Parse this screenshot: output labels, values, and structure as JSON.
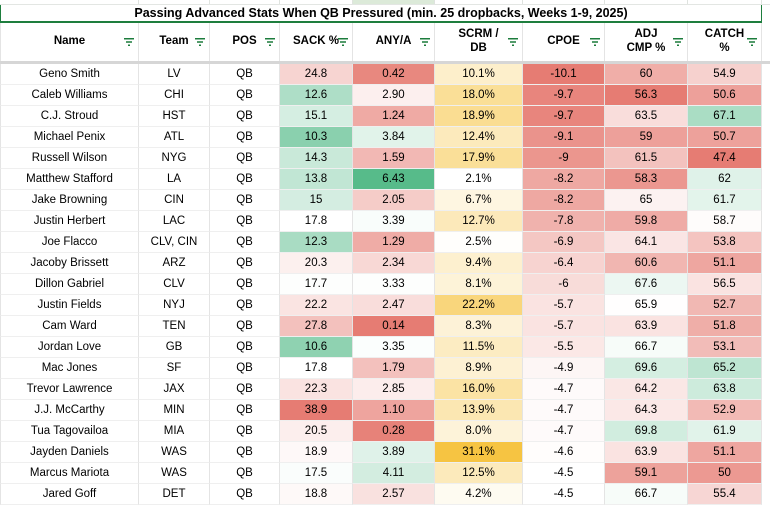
{
  "title": "Passing Advanced Stats When QB Pressured (min. 25 dropbacks, Weeks 1-9, 2025)",
  "colors": {
    "heat_red": "#e67c73",
    "heat_green": "#57bb8a",
    "heat_gold": "#f6c442",
    "title_border_green": "#1e7e3e",
    "filter_icon_green": "#1c7c3c",
    "freeze_bar_gray": "#d6d6d6",
    "gridline": "#e4e4e4",
    "strip_highlight": "#dcead9"
  },
  "columns": [
    {
      "key": "name",
      "label": "Name"
    },
    {
      "key": "team",
      "label": "Team"
    },
    {
      "key": "pos",
      "label": "POS"
    },
    {
      "key": "sack",
      "label": "SACK %"
    },
    {
      "key": "anya",
      "label": "ANY/A"
    },
    {
      "key": "scrm",
      "label": "SCRM /\nDB"
    },
    {
      "key": "cpoe",
      "label": "CPOE"
    },
    {
      "key": "adj",
      "label": "ADJ\nCMP %"
    },
    {
      "key": "catch",
      "label": "CATCH\n%"
    }
  ],
  "rows": [
    {
      "name": "Geno Smith",
      "team": "LV",
      "pos": "QB",
      "sack": {
        "v": "24.8",
        "bg": "#f7d4d1"
      },
      "anya": {
        "v": "0.42",
        "bg": "#e8887f"
      },
      "scrm": {
        "v": "10.1%",
        "bg": "#fdefcb"
      },
      "cpoe": {
        "v": "-10.1",
        "bg": "#e67c73"
      },
      "adj": {
        "v": "60",
        "bg": "#f0aea8"
      },
      "catch": {
        "v": "54.9",
        "bg": "#f6d1ce"
      }
    },
    {
      "name": "Caleb Williams",
      "team": "CHI",
      "pos": "QB",
      "sack": {
        "v": "12.6",
        "bg": "#aedec7"
      },
      "anya": {
        "v": "2.90",
        "bg": "#fcefee"
      },
      "scrm": {
        "v": "18.0%",
        "bg": "#fadf97"
      },
      "cpoe": {
        "v": "-9.7",
        "bg": "#e8857d"
      },
      "adj": {
        "v": "56.3",
        "bg": "#e67c73"
      },
      "catch": {
        "v": "50.6",
        "bg": "#eda09a"
      }
    },
    {
      "name": "C.J. Stroud",
      "team": "HST",
      "pos": "QB",
      "sack": {
        "v": "15.1",
        "bg": "#d5eee2"
      },
      "anya": {
        "v": "1.24",
        "bg": "#efaaa4"
      },
      "scrm": {
        "v": "18.9%",
        "bg": "#fadd92"
      },
      "cpoe": {
        "v": "-9.7",
        "bg": "#e8857d"
      },
      "adj": {
        "v": "63.5",
        "bg": "#f9dddb"
      },
      "catch": {
        "v": "67.1",
        "bg": "#aaddc4"
      }
    },
    {
      "name": "Michael Penix",
      "team": "ATL",
      "pos": "QB",
      "sack": {
        "v": "10.3",
        "bg": "#8ad0ae"
      },
      "anya": {
        "v": "3.84",
        "bg": "#e1f3ea"
      },
      "scrm": {
        "v": "12.4%",
        "bg": "#fceabc"
      },
      "cpoe": {
        "v": "-9.1",
        "bg": "#ea938c"
      },
      "adj": {
        "v": "59",
        "bg": "#eda09a"
      },
      "catch": {
        "v": "50.7",
        "bg": "#eda19b"
      }
    },
    {
      "name": "Russell Wilson",
      "team": "NYG",
      "pos": "QB",
      "sack": {
        "v": "14.3",
        "bg": "#c9e9d9"
      },
      "anya": {
        "v": "1.59",
        "bg": "#f2b8b4"
      },
      "scrm": {
        "v": "17.9%",
        "bg": "#fadf98"
      },
      "cpoe": {
        "v": "-9",
        "bg": "#eb968e"
      },
      "adj": {
        "v": "61.5",
        "bg": "#f3c2be"
      },
      "catch": {
        "v": "47.4",
        "bg": "#e67c73"
      }
    },
    {
      "name": "Matthew Stafford",
      "team": "LA",
      "pos": "QB",
      "sack": {
        "v": "13.8",
        "bg": "#c1e6d4"
      },
      "anya": {
        "v": "6.43",
        "bg": "#57bb8a"
      },
      "scrm": {
        "v": "2.1%",
        "bg": "#ffffff"
      },
      "cpoe": {
        "v": "-8.2",
        "bg": "#eea8a2"
      },
      "adj": {
        "v": "58.3",
        "bg": "#eb9790"
      },
      "catch": {
        "v": "62",
        "bg": "#dff2e9"
      }
    },
    {
      "name": "Jake Browning",
      "team": "CIN",
      "pos": "QB",
      "sack": {
        "v": "15",
        "bg": "#d4ede1"
      },
      "anya": {
        "v": "2.05",
        "bg": "#f5ccc8"
      },
      "scrm": {
        "v": "6.7%",
        "bg": "#fef6e1"
      },
      "cpoe": {
        "v": "-8.2",
        "bg": "#eea8a2"
      },
      "adj": {
        "v": "65",
        "bg": "#fcf2f1"
      },
      "catch": {
        "v": "61.7",
        "bg": "#e3f4eb"
      }
    },
    {
      "name": "Justin Herbert",
      "team": "LAC",
      "pos": "QB",
      "sack": {
        "v": "17.8",
        "bg": "#ffffff"
      },
      "anya": {
        "v": "3.39",
        "bg": "#f9fdfb"
      },
      "scrm": {
        "v": "12.7%",
        "bg": "#fce9ba"
      },
      "cpoe": {
        "v": "-7.8",
        "bg": "#f0b2ad"
      },
      "adj": {
        "v": "59.8",
        "bg": "#efaba6"
      },
      "catch": {
        "v": "58.7",
        "bg": "#fefcfb"
      }
    },
    {
      "name": "Joe Flacco",
      "team": "CLV, CIN",
      "pos": "QB",
      "sack": {
        "v": "12.3",
        "bg": "#a9dcc3"
      },
      "anya": {
        "v": "1.29",
        "bg": "#efaca6"
      },
      "scrm": {
        "v": "2.5%",
        "bg": "#fffefc"
      },
      "cpoe": {
        "v": "-6.9",
        "bg": "#f4c7c3"
      },
      "adj": {
        "v": "64.1",
        "bg": "#fae5e4"
      },
      "catch": {
        "v": "53.8",
        "bg": "#f4c4c0"
      }
    },
    {
      "name": "Jacoby Brissett",
      "team": "ARZ",
      "pos": "QB",
      "sack": {
        "v": "20.3",
        "bg": "#fcf0ee"
      },
      "anya": {
        "v": "2.34",
        "bg": "#f8d8d5"
      },
      "scrm": {
        "v": "9.4%",
        "bg": "#fdf0cf"
      },
      "cpoe": {
        "v": "-6.4",
        "bg": "#f7d3d0"
      },
      "adj": {
        "v": "60.6",
        "bg": "#f1b6b1"
      },
      "catch": {
        "v": "51.1",
        "bg": "#eea6a0"
      }
    },
    {
      "name": "Dillon Gabriel",
      "team": "CLV",
      "pos": "QB",
      "sack": {
        "v": "17.7",
        "bg": "#fdfefd"
      },
      "anya": {
        "v": "3.33",
        "bg": "#fdfefd"
      },
      "scrm": {
        "v": "8.1%",
        "bg": "#fdf3d8"
      },
      "cpoe": {
        "v": "-6",
        "bg": "#f8dcd9"
      },
      "adj": {
        "v": "67.6",
        "bg": "#ecf7f2"
      },
      "catch": {
        "v": "56.5",
        "bg": "#fae3e1"
      }
    },
    {
      "name": "Justin Fields",
      "team": "NYJ",
      "pos": "QB",
      "sack": {
        "v": "22.2",
        "bg": "#fae4e2"
      },
      "anya": {
        "v": "2.47",
        "bg": "#f9dddb"
      },
      "scrm": {
        "v": "22.2%",
        "bg": "#f9d67c"
      },
      "cpoe": {
        "v": "-5.7",
        "bg": "#fae3e1"
      },
      "adj": {
        "v": "65.9",
        "bg": "#fffefe"
      },
      "catch": {
        "v": "52.7",
        "bg": "#f1b8b3"
      }
    },
    {
      "name": "Cam Ward",
      "team": "TEN",
      "pos": "QB",
      "sack": {
        "v": "27.8",
        "bg": "#f3c1bd"
      },
      "anya": {
        "v": "0.14",
        "bg": "#e67c73"
      },
      "scrm": {
        "v": "8.3%",
        "bg": "#fdf2d7"
      },
      "cpoe": {
        "v": "-5.7",
        "bg": "#fae3e1"
      },
      "adj": {
        "v": "63.9",
        "bg": "#fae3e1"
      },
      "catch": {
        "v": "51.8",
        "bg": "#efaea8"
      }
    },
    {
      "name": "Jordan Love",
      "team": "GB",
      "pos": "QB",
      "sack": {
        "v": "10.6",
        "bg": "#8fd2b1"
      },
      "anya": {
        "v": "3.35",
        "bg": "#fbfefd"
      },
      "scrm": {
        "v": "11.5%",
        "bg": "#fcecc2"
      },
      "cpoe": {
        "v": "-5.5",
        "bg": "#fbe8e6"
      },
      "adj": {
        "v": "66.7",
        "bg": "#f7fcf9"
      },
      "catch": {
        "v": "53.1",
        "bg": "#f2bcb8"
      }
    },
    {
      "name": "Mac Jones",
      "team": "SF",
      "pos": "QB",
      "sack": {
        "v": "17.8",
        "bg": "#ffffff"
      },
      "anya": {
        "v": "1.79",
        "bg": "#f3c1bd"
      },
      "scrm": {
        "v": "8.9%",
        "bg": "#fdf1d3"
      },
      "cpoe": {
        "v": "-4.9",
        "bg": "#fdf6f5"
      },
      "adj": {
        "v": "69.6",
        "bg": "#d4eee1"
      },
      "catch": {
        "v": "65.2",
        "bg": "#bee5d2"
      }
    },
    {
      "name": "Trevor Lawrence",
      "team": "JAX",
      "pos": "QB",
      "sack": {
        "v": "22.3",
        "bg": "#fae3e1"
      },
      "anya": {
        "v": "2.85",
        "bg": "#fcedec"
      },
      "scrm": {
        "v": "16.0%",
        "bg": "#fbe3a4"
      },
      "cpoe": {
        "v": "-4.7",
        "bg": "#fefafa"
      },
      "adj": {
        "v": "64.2",
        "bg": "#fae7e5"
      },
      "catch": {
        "v": "63.8",
        "bg": "#cdebdc"
      }
    },
    {
      "name": "J.J. McCarthy",
      "team": "MIN",
      "pos": "QB",
      "sack": {
        "v": "38.9",
        "bg": "#e67c73"
      },
      "anya": {
        "v": "1.10",
        "bg": "#eea49e"
      },
      "scrm": {
        "v": "13.9%",
        "bg": "#fbe7b2"
      },
      "cpoe": {
        "v": "-4.7",
        "bg": "#fefafa"
      },
      "adj": {
        "v": "64.3",
        "bg": "#fbe8e7"
      },
      "catch": {
        "v": "52.9",
        "bg": "#f2bab5"
      }
    },
    {
      "name": "Tua Tagovailoa",
      "team": "MIA",
      "pos": "QB",
      "sack": {
        "v": "20.5",
        "bg": "#fceeed"
      },
      "anya": {
        "v": "0.28",
        "bg": "#e78279"
      },
      "scrm": {
        "v": "8.0%",
        "bg": "#fdf3d9"
      },
      "cpoe": {
        "v": "-4.7",
        "bg": "#fefafa"
      },
      "adj": {
        "v": "69.8",
        "bg": "#d1eddf"
      },
      "catch": {
        "v": "61.9",
        "bg": "#e1f3ea"
      }
    },
    {
      "name": "Jayden Daniels",
      "team": "WAS",
      "pos": "QB",
      "sack": {
        "v": "18.9",
        "bg": "#fef8f8"
      },
      "anya": {
        "v": "3.89",
        "bg": "#dff2e9"
      },
      "scrm": {
        "v": "31.1%",
        "bg": "#f6c442"
      },
      "cpoe": {
        "v": "-4.6",
        "bg": "#fffdfc"
      },
      "adj": {
        "v": "63.9",
        "bg": "#fae3e1"
      },
      "catch": {
        "v": "51.1",
        "bg": "#eea6a0"
      }
    },
    {
      "name": "Marcus Mariota",
      "team": "WAS",
      "pos": "QB",
      "sack": {
        "v": "17.5",
        "bg": "#fafdfc"
      },
      "anya": {
        "v": "4.11",
        "bg": "#d3ede0"
      },
      "scrm": {
        "v": "12.5%",
        "bg": "#fceabb"
      },
      "cpoe": {
        "v": "-4.5",
        "bg": "#ffffff"
      },
      "adj": {
        "v": "59.1",
        "bg": "#eda29b"
      },
      "catch": {
        "v": "50",
        "bg": "#ec9992"
      }
    },
    {
      "name": "Jared Goff",
      "team": "DET",
      "pos": "QB",
      "sack": {
        "v": "18.8",
        "bg": "#fef9f8"
      },
      "anya": {
        "v": "2.57",
        "bg": "#f9e1df"
      },
      "scrm": {
        "v": "4.2%",
        "bg": "#fefbf1"
      },
      "cpoe": {
        "v": "-4.5",
        "bg": "#ffffff"
      },
      "adj": {
        "v": "66.7",
        "bg": "#f7fcf9"
      },
      "catch": {
        "v": "55.4",
        "bg": "#f7d6d4"
      }
    }
  ]
}
